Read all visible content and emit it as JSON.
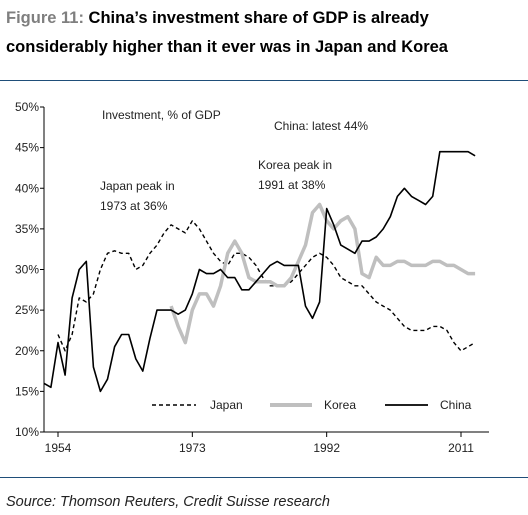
{
  "header": {
    "figure_label": "Figure 11:",
    "title_text": "China’s investment share of GDP is already considerably higher than it ever was in Japan and Korea"
  },
  "footer": {
    "source": "Source: Thomson Reuters, Credit Suisse research"
  },
  "colors": {
    "rule": "#1f4e79",
    "japan": "#000000",
    "korea": "#bfbfbf",
    "china": "#000000"
  },
  "chart_data": {
    "type": "line",
    "ylabel": "Investment, % of GDP",
    "ylim": [
      10,
      50
    ],
    "xlim": [
      1954,
      2014
    ],
    "y_ticks": [
      "10%",
      "15%",
      "20%",
      "25%",
      "30%",
      "35%",
      "40%",
      "45%",
      "50%"
    ],
    "x_ticks": [
      "1954",
      "1973",
      "1992",
      "2011"
    ],
    "legend_position": "bottom",
    "annotations": [
      "China: latest 44%",
      "Korea peak in 1991 at 38%",
      "Japan peak in 1973 at 36%"
    ],
    "series": [
      {
        "name": "Japan",
        "style": "dashed",
        "x": [
          1954,
          1955,
          1956,
          1957,
          1958,
          1959,
          1960,
          1961,
          1962,
          1963,
          1964,
          1965,
          1966,
          1967,
          1968,
          1969,
          1970,
          1971,
          1972,
          1973,
          1974,
          1975,
          1976,
          1977,
          1978,
          1979,
          1980,
          1981,
          1982,
          1983,
          1984,
          1985,
          1986,
          1987,
          1988,
          1989,
          1990,
          1991,
          1992,
          1993,
          1994,
          1995,
          1996,
          1997,
          1998,
          1999,
          2000,
          2001,
          2002,
          2003,
          2004,
          2005,
          2006,
          2007,
          2008,
          2009,
          2010,
          2011,
          2012,
          2013
        ],
        "values": [
          22,
          20,
          22,
          26.5,
          26,
          27,
          30,
          32,
          32.3,
          32,
          32,
          30,
          30.5,
          32,
          33,
          34.5,
          35.5,
          35,
          34.5,
          36,
          35,
          33.5,
          32,
          31,
          30.5,
          32,
          32,
          31.5,
          30.5,
          29,
          28,
          28,
          28,
          28.5,
          29.5,
          30.5,
          31.5,
          32,
          31.5,
          30.5,
          29,
          28.5,
          28,
          28,
          27,
          26,
          25.5,
          25,
          24,
          23,
          22.5,
          22.5,
          22.5,
          23,
          23,
          22.5,
          21,
          20,
          20.5,
          21
        ]
      },
      {
        "name": "Korea",
        "style": "thick-gray",
        "x": [
          1970,
          1971,
          1972,
          1973,
          1974,
          1975,
          1976,
          1977,
          1978,
          1979,
          1980,
          1981,
          1982,
          1983,
          1984,
          1985,
          1986,
          1987,
          1988,
          1989,
          1990,
          1991,
          1992,
          1993,
          1994,
          1995,
          1996,
          1997,
          1998,
          1999,
          2000,
          2001,
          2002,
          2003,
          2004,
          2005,
          2006,
          2007,
          2008,
          2009,
          2010,
          2011,
          2012,
          2013
        ],
        "values": [
          25.5,
          23,
          21,
          25,
          27,
          27,
          25.5,
          28,
          32,
          33.5,
          32,
          29,
          28.5,
          28.5,
          28.5,
          28,
          28,
          29,
          31,
          33,
          37,
          38,
          36,
          35,
          36,
          36.5,
          35,
          29.5,
          29,
          31.5,
          30.5,
          30.5,
          31,
          31,
          30.5,
          30.5,
          30.5,
          31,
          31,
          30.5,
          30.5,
          30,
          29.5,
          29.5
        ]
      },
      {
        "name": "China",
        "style": "solid",
        "x": [
          1952,
          1953,
          1954,
          1955,
          1956,
          1957,
          1958,
          1959,
          1960,
          1961,
          1962,
          1963,
          1964,
          1965,
          1966,
          1967,
          1968,
          1969,
          1970,
          1971,
          1972,
          1973,
          1974,
          1975,
          1976,
          1977,
          1978,
          1979,
          1980,
          1981,
          1982,
          1983,
          1984,
          1985,
          1986,
          1987,
          1988,
          1989,
          1990,
          1991,
          1992,
          1993,
          1994,
          1995,
          1996,
          1997,
          1998,
          1999,
          2000,
          2001,
          2002,
          2003,
          2004,
          2005,
          2006,
          2007,
          2008,
          2009,
          2010,
          2011,
          2012,
          2013
        ],
        "values": [
          16,
          15.5,
          21,
          17,
          26.5,
          30,
          31,
          18,
          15,
          16.5,
          20.5,
          22,
          22,
          19,
          17.5,
          21.5,
          25,
          25,
          25,
          24.5,
          25,
          27,
          30,
          29.5,
          29.5,
          30,
          29,
          29,
          27.5,
          27.5,
          28.5,
          29.5,
          30.5,
          31,
          30.5,
          30.5,
          30.5,
          25.5,
          24,
          26,
          37.5,
          35.5,
          33,
          32.5,
          32,
          33.5,
          33.5,
          34,
          35,
          36.5,
          39,
          40,
          39,
          38.5,
          38,
          39,
          44.5,
          44.5,
          44.5,
          44.5,
          44.5,
          44
        ]
      }
    ]
  }
}
